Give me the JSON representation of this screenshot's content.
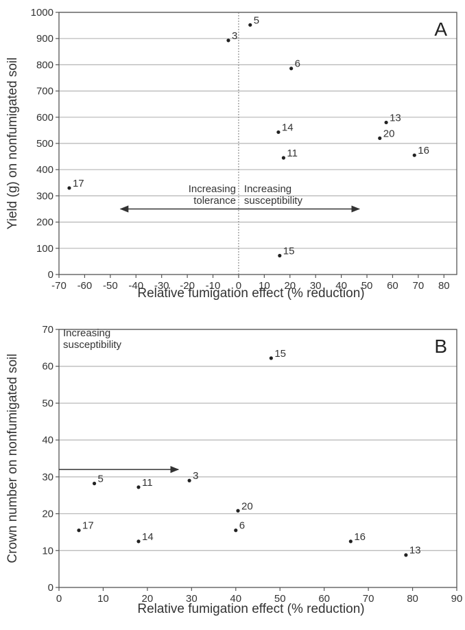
{
  "chart_data": [
    {
      "type": "scatter",
      "panel_label": "A",
      "xlabel": "Relative fumigation effect (% reduction)",
      "ylabel": "Yield (g) on nonfumigated soil",
      "xlim": [
        -70,
        85
      ],
      "ylim": [
        0,
        1000
      ],
      "xticks": [
        -70,
        -60,
        -50,
        -40,
        -30,
        -20,
        -10,
        0,
        10,
        20,
        30,
        40,
        50,
        60,
        70,
        80
      ],
      "yticks": [
        0,
        100,
        200,
        300,
        400,
        500,
        600,
        700,
        800,
        900,
        1000
      ],
      "grid": "horizontal",
      "reference_line_x": 0,
      "points": [
        {
          "label": "5",
          "x": 4.5,
          "y": 952
        },
        {
          "label": "3",
          "x": -4,
          "y": 893
        },
        {
          "label": "6",
          "x": 20.5,
          "y": 786
        },
        {
          "label": "13",
          "x": 57.5,
          "y": 580
        },
        {
          "label": "14",
          "x": 15.5,
          "y": 543
        },
        {
          "label": "20",
          "x": 55,
          "y": 520
        },
        {
          "label": "16",
          "x": 68.5,
          "y": 455
        },
        {
          "label": "11",
          "x": 17.5,
          "y": 445
        },
        {
          "label": "17",
          "x": -66,
          "y": 330
        },
        {
          "label": "15",
          "x": 16,
          "y": 72
        }
      ],
      "annotations": [
        {
          "lines": [
            "Increasing",
            "tolerance"
          ],
          "side": "left"
        },
        {
          "lines": [
            "Increasing",
            "susceptibility"
          ],
          "side": "right"
        }
      ],
      "arrow": {
        "type": "double",
        "x_from": -46,
        "x_to": 47,
        "y": 250
      }
    },
    {
      "type": "scatter",
      "panel_label": "B",
      "xlabel": "Relative fumigation effect (% reduction)",
      "ylabel": "Crown number on nonfumigated soil",
      "xlim": [
        0,
        90
      ],
      "ylim": [
        0,
        70
      ],
      "xticks": [
        0,
        10,
        20,
        30,
        40,
        50,
        60,
        70,
        80,
        90
      ],
      "yticks": [
        0,
        10,
        20,
        30,
        40,
        50,
        60,
        70
      ],
      "grid": "horizontal",
      "points": [
        {
          "label": "15",
          "x": 48,
          "y": 62.2
        },
        {
          "label": "3",
          "x": 29.5,
          "y": 29
        },
        {
          "label": "5",
          "x": 8,
          "y": 28.2
        },
        {
          "label": "11",
          "x": 18,
          "y": 27.2
        },
        {
          "label": "20",
          "x": 40.5,
          "y": 20.8
        },
        {
          "label": "6",
          "x": 40,
          "y": 15.5
        },
        {
          "label": "17",
          "x": 4.5,
          "y": 15.5
        },
        {
          "label": "14",
          "x": 18,
          "y": 12.5
        },
        {
          "label": "16",
          "x": 66,
          "y": 12.5
        },
        {
          "label": "13",
          "x": 78.5,
          "y": 8.8
        }
      ],
      "annotations": [
        {
          "lines": [
            "Increasing",
            "susceptibility"
          ],
          "side": "left"
        }
      ],
      "arrow": {
        "type": "single",
        "x_from": 0,
        "x_to": 27,
        "y": 32
      }
    }
  ]
}
